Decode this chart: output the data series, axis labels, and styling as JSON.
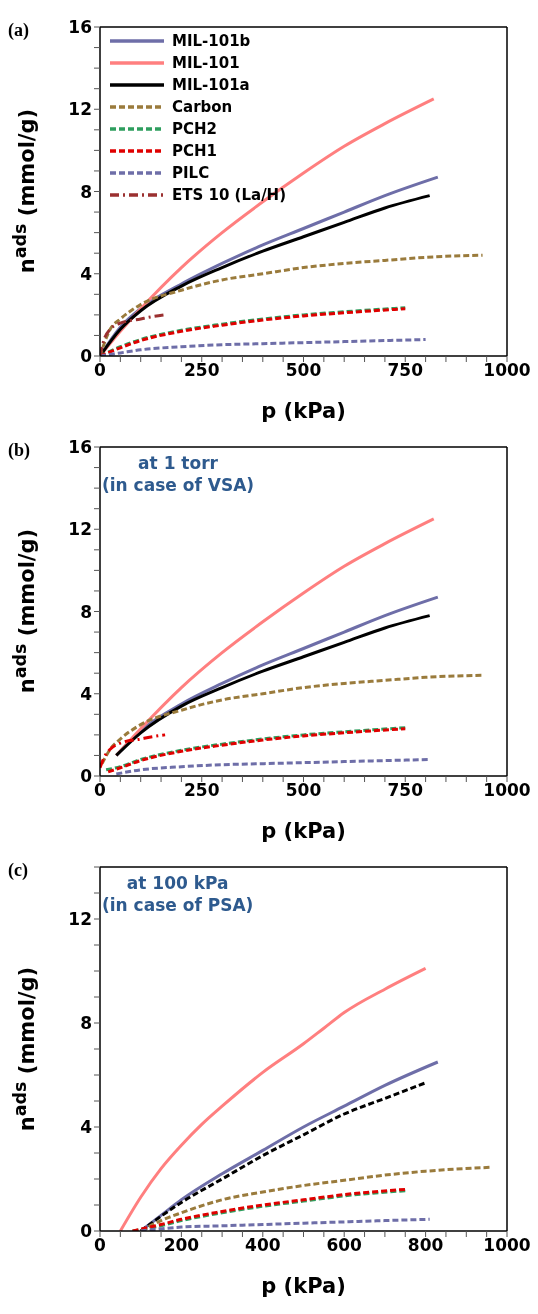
{
  "chart_data": [
    {
      "type": "line",
      "title": "(a)",
      "xlabel": "p (kPa)",
      "ylabel": "n$^{ads}$ (mmol/g)",
      "legend": "top left",
      "xlim": [
        0,
        1000
      ],
      "ylim": [
        0,
        16
      ],
      "xticks": [
        0,
        {
          "value": 50,
          "label": null
        },
        {
          "value": 100,
          "label": null
        },
        {
          "value": 150,
          "label": null
        },
        {
          "value": 200,
          "label": null
        },
        250,
        {
          "value": 300,
          "label": null
        },
        {
          "value": 350,
          "label": null
        },
        {
          "value": 400,
          "label": null
        },
        {
          "value": 450,
          "label": null
        },
        500,
        {
          "value": 550,
          "label": null
        },
        {
          "value": 600,
          "label": null
        },
        {
          "value": 650,
          "label": null
        },
        {
          "value": 700,
          "label": null
        },
        750,
        {
          "value": 800,
          "label": null
        },
        {
          "value": 850,
          "label": null
        },
        {
          "value": 900,
          "label": null
        },
        {
          "value": 950,
          "label": null
        },
        1000
      ],
      "yticks": [
        0,
        {
          "value": 1,
          "label": null
        },
        {
          "value": 2,
          "label": null
        },
        {
          "value": 3,
          "label": null
        },
        4,
        {
          "value": 5,
          "label": null
        },
        {
          "value": 6,
          "label": null
        },
        {
          "value": 7,
          "label": null
        },
        8,
        {
          "value": 9,
          "label": null
        },
        {
          "value": 10,
          "label": null
        },
        {
          "value": 11,
          "label": null
        },
        12,
        {
          "value": 13,
          "label": null
        },
        {
          "value": 14,
          "label": null
        },
        {
          "value": 15,
          "label": null
        },
        16
      ],
      "series": [
        {
          "name": "MIL-101b",
          "color": "#6e6ea8",
          "line_style": "solid",
          "x": [
            0,
            50,
            100,
            200,
            300,
            400,
            500,
            600,
            700,
            830
          ],
          "values": [
            0,
            1.4,
            2.3,
            3.5,
            4.5,
            5.4,
            6.2,
            7.0,
            7.8,
            8.7
          ]
        },
        {
          "name": "MIL-101",
          "color": "#ff7f7f",
          "line_style": "solid",
          "x": [
            0,
            50,
            100,
            200,
            300,
            400,
            500,
            600,
            700,
            820
          ],
          "values": [
            0,
            1.2,
            2.3,
            4.3,
            6.0,
            7.5,
            8.9,
            10.2,
            11.3,
            12.5
          ]
        },
        {
          "name": "MIL-101a",
          "color": "#000000",
          "line_style": "solid",
          "x": [
            0,
            50,
            100,
            200,
            300,
            400,
            500,
            600,
            700,
            810
          ],
          "values": [
            0,
            1.3,
            2.2,
            3.4,
            4.3,
            5.1,
            5.8,
            6.5,
            7.2,
            7.8
          ]
        },
        {
          "name": "Carbon",
          "color": "#9a7b3c",
          "line_style": "dashed",
          "x": [
            0,
            25,
            50,
            100,
            200,
            300,
            400,
            500,
            600,
            700,
            800,
            940
          ],
          "values": [
            0,
            1.3,
            1.8,
            2.5,
            3.2,
            3.7,
            4.0,
            4.3,
            4.5,
            4.65,
            4.8,
            4.9
          ]
        },
        {
          "name": "PCH2",
          "color": "#2e9e5e",
          "line_style": "dashed",
          "x": [
            0,
            50,
            100,
            200,
            300,
            400,
            500,
            600,
            750
          ],
          "values": [
            0,
            0.45,
            0.8,
            1.25,
            1.55,
            1.8,
            2.0,
            2.15,
            2.35
          ]
        },
        {
          "name": "PCH1",
          "color": "#e00000",
          "line_style": "dashed",
          "x": [
            0,
            50,
            100,
            200,
            300,
            400,
            500,
            600,
            750
          ],
          "values": [
            0,
            0.4,
            0.75,
            1.2,
            1.5,
            1.75,
            1.95,
            2.1,
            2.3
          ]
        },
        {
          "name": "PILC",
          "color": "#6e6ea8",
          "line_style": "dashed",
          "x": [
            0,
            50,
            100,
            200,
            300,
            400,
            500,
            600,
            700,
            800
          ],
          "values": [
            0,
            0.15,
            0.3,
            0.45,
            0.55,
            0.6,
            0.65,
            0.7,
            0.75,
            0.8
          ]
        },
        {
          "name": "ETS 10 (La/H)",
          "color": "#9b3030",
          "line_style": "dashdot",
          "x": [
            0,
            10,
            25,
            50,
            100,
            125,
            160
          ],
          "values": [
            0,
            0.8,
            1.3,
            1.6,
            1.8,
            1.9,
            2.0
          ]
        }
      ]
    },
    {
      "type": "line",
      "title": "(b)",
      "xlabel": "p (kPa)",
      "ylabel": "n$^{ads}$ (mmol/g)",
      "annotations": [
        "at 1 torr",
        "(in case of VSA)"
      ],
      "xlim": [
        0,
        1000
      ],
      "ylim": [
        0,
        16
      ],
      "xticks": [
        0,
        {
          "value": 50,
          "label": null
        },
        {
          "value": 100,
          "label": null
        },
        {
          "value": 150,
          "label": null
        },
        {
          "value": 200,
          "label": null
        },
        250,
        {
          "value": 300,
          "label": null
        },
        {
          "value": 350,
          "label": null
        },
        {
          "value": 400,
          "label": null
        },
        {
          "value": 450,
          "label": null
        },
        500,
        {
          "value": 550,
          "label": null
        },
        {
          "value": 600,
          "label": null
        },
        {
          "value": 650,
          "label": null
        },
        {
          "value": 700,
          "label": null
        },
        750,
        {
          "value": 800,
          "label": null
        },
        {
          "value": 850,
          "label": null
        },
        {
          "value": 900,
          "label": null
        },
        {
          "value": 950,
          "label": null
        },
        1000
      ],
      "yticks": [
        0,
        {
          "value": 1,
          "label": null
        },
        {
          "value": 2,
          "label": null
        },
        {
          "value": 3,
          "label": null
        },
        4,
        {
          "value": 5,
          "label": null
        },
        {
          "value": 6,
          "label": null
        },
        {
          "value": 7,
          "label": null
        },
        8,
        {
          "value": 9,
          "label": null
        },
        {
          "value": 10,
          "label": null
        },
        {
          "value": 11,
          "label": null
        },
        12,
        {
          "value": 13,
          "label": null
        },
        {
          "value": 14,
          "label": null
        },
        {
          "value": 15,
          "label": null
        },
        16
      ],
      "series": [
        {
          "color": "#6e6ea8",
          "line_style": "solid",
          "x": [
            40,
            100,
            200,
            300,
            400,
            500,
            600,
            700,
            830
          ],
          "values": [
            1.0,
            2.2,
            3.5,
            4.5,
            5.4,
            6.2,
            7.0,
            7.8,
            8.7
          ]
        },
        {
          "color": "#ff7f7f",
          "line_style": "solid",
          "x": [
            40,
            100,
            200,
            300,
            400,
            500,
            600,
            700,
            820
          ],
          "values": [
            1.0,
            2.3,
            4.3,
            6.0,
            7.5,
            8.9,
            10.2,
            11.3,
            12.5
          ]
        },
        {
          "color": "#000000",
          "line_style": "solid",
          "x": [
            40,
            100,
            200,
            300,
            400,
            500,
            600,
            700,
            810
          ],
          "values": [
            1.0,
            2.1,
            3.4,
            4.3,
            5.1,
            5.8,
            6.5,
            7.2,
            7.8
          ]
        },
        {
          "color": "#9a7b3c",
          "line_style": "dashed",
          "x": [
            5,
            25,
            50,
            100,
            200,
            300,
            400,
            500,
            600,
            700,
            800,
            940
          ],
          "values": [
            0.6,
            1.3,
            1.8,
            2.5,
            3.2,
            3.7,
            4.0,
            4.3,
            4.5,
            4.65,
            4.8,
            4.9
          ]
        },
        {
          "color": "#2e9e5e",
          "line_style": "dashed",
          "x": [
            15,
            50,
            100,
            200,
            300,
            400,
            500,
            600,
            750
          ],
          "values": [
            0.3,
            0.45,
            0.8,
            1.25,
            1.55,
            1.8,
            2.0,
            2.15,
            2.35
          ]
        },
        {
          "color": "#e00000",
          "line_style": "dashed",
          "x": [
            20,
            50,
            100,
            200,
            300,
            400,
            500,
            600,
            750
          ],
          "values": [
            0.2,
            0.4,
            0.75,
            1.2,
            1.5,
            1.75,
            1.95,
            2.1,
            2.3
          ]
        },
        {
          "color": "#6e6ea8",
          "line_style": "dashed",
          "x": [
            40,
            100,
            200,
            300,
            400,
            500,
            600,
            700,
            810
          ],
          "values": [
            0.1,
            0.3,
            0.45,
            0.55,
            0.6,
            0.65,
            0.7,
            0.75,
            0.8
          ]
        },
        {
          "color": "#e00000",
          "line_style": "dashdot",
          "x": [
            0,
            10,
            25,
            50,
            100,
            125,
            160
          ],
          "values": [
            0.4,
            0.9,
            1.3,
            1.6,
            1.8,
            1.9,
            2.0
          ]
        }
      ]
    },
    {
      "type": "line",
      "title": "(c)",
      "xlabel": "p (kPa)",
      "ylabel": "n$^{ads}$ (mmol/g)",
      "annotations": [
        "at 100 kPa",
        "(in case of  PSA)"
      ],
      "xlim": [
        0,
        1000
      ],
      "ylim": [
        0,
        14
      ],
      "xticks": [
        0,
        {
          "value": 50,
          "label": null
        },
        {
          "value": 100,
          "label": null
        },
        {
          "value": 150,
          "label": null
        },
        200,
        {
          "value": 250,
          "label": null
        },
        {
          "value": 300,
          "label": null
        },
        {
          "value": 350,
          "label": null
        },
        400,
        {
          "value": 450,
          "label": null
        },
        {
          "value": 500,
          "label": null
        },
        {
          "value": 550,
          "label": null
        },
        600,
        {
          "value": 650,
          "label": null
        },
        {
          "value": 700,
          "label": null
        },
        {
          "value": 750,
          "label": null
        },
        800,
        {
          "value": 850,
          "label": null
        },
        {
          "value": 900,
          "label": null
        },
        {
          "value": 950,
          "label": null
        },
        1000
      ],
      "yticks": [
        0,
        {
          "value": 1,
          "label": null
        },
        {
          "value": 2,
          "label": null
        },
        {
          "value": 3,
          "label": null
        },
        4,
        {
          "value": 5,
          "label": null
        },
        {
          "value": 6,
          "label": null
        },
        {
          "value": 7,
          "label": null
        },
        8,
        {
          "value": 9,
          "label": null
        },
        {
          "value": 10,
          "label": null
        },
        {
          "value": 11,
          "label": null
        },
        12,
        {
          "value": 13,
          "label": null
        },
        {
          "value": 14,
          "label": null
        }
      ],
      "series": [
        {
          "color": "#ff7f7f",
          "line_style": "solid",
          "x": [
            50,
            100,
            150,
            200,
            250,
            300,
            400,
            500,
            550,
            600,
            700,
            800
          ],
          "values": [
            0,
            1.3,
            2.4,
            3.3,
            4.1,
            4.8,
            6.1,
            7.2,
            7.8,
            8.4,
            9.3,
            10.1
          ]
        },
        {
          "color": "#6e6ea8",
          "line_style": "solid",
          "x": [
            100,
            150,
            200,
            300,
            400,
            500,
            600,
            700,
            830
          ],
          "values": [
            0,
            0.6,
            1.2,
            2.2,
            3.1,
            4.0,
            4.8,
            5.6,
            6.5
          ]
        },
        {
          "color": "#000000",
          "line_style": "dashed",
          "x": [
            100,
            200,
            300,
            400,
            500,
            600,
            700,
            800
          ],
          "values": [
            0,
            1.1,
            2.0,
            2.9,
            3.7,
            4.5,
            5.1,
            5.7
          ]
        },
        {
          "color": "#9a7b3c",
          "line_style": "dashed",
          "x": [
            100,
            150,
            200,
            300,
            400,
            500,
            600,
            700,
            800,
            960
          ],
          "values": [
            0,
            0.4,
            0.7,
            1.2,
            1.5,
            1.75,
            1.95,
            2.15,
            2.3,
            2.45
          ]
        },
        {
          "color": "#2e9e5e",
          "line_style": "dashed",
          "x": [
            80,
            150,
            200,
            300,
            400,
            500,
            600,
            750
          ],
          "values": [
            0,
            0.2,
            0.4,
            0.7,
            0.95,
            1.15,
            1.35,
            1.55
          ]
        },
        {
          "color": "#e00000",
          "line_style": "dashed",
          "x": [
            80,
            150,
            200,
            300,
            400,
            500,
            600,
            750
          ],
          "values": [
            0,
            0.25,
            0.45,
            0.75,
            1.0,
            1.2,
            1.4,
            1.6
          ]
        },
        {
          "color": "#6e6ea8",
          "line_style": "dashed",
          "x": [
            100,
            200,
            300,
            400,
            500,
            600,
            700,
            810
          ],
          "values": [
            0,
            0.15,
            0.2,
            0.25,
            0.3,
            0.35,
            0.4,
            0.45
          ]
        }
      ]
    }
  ]
}
